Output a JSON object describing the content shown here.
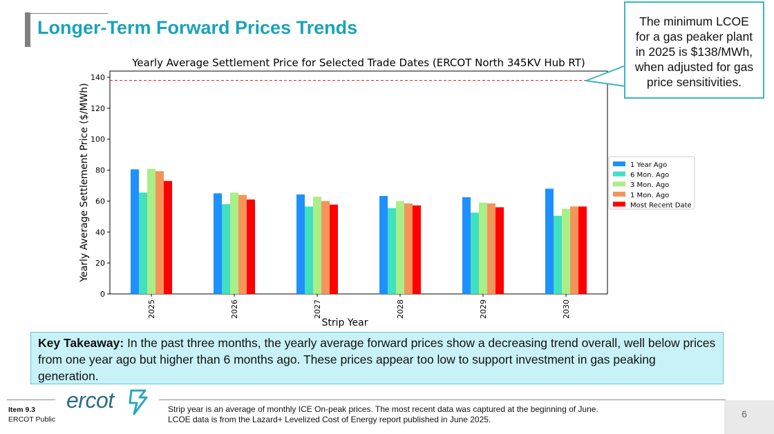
{
  "slide": {
    "title": "Longer-Term Forward Prices Trends",
    "page_number": "6"
  },
  "callout": {
    "lines": [
      "The minimum LCOE",
      "for a gas peaker plant",
      "in 2025 is $138/MWh,",
      "when adjusted for gas",
      "price sensitivities."
    ]
  },
  "takeaway": {
    "label": "Key Takeaway:",
    "text": " In the past three months, the yearly average forward prices show a decreasing trend overall, well below prices from one year ago but higher than 6 months ago. These prices appear too low to support investment in gas peaking generation."
  },
  "footer": {
    "item": "Item 9.3",
    "classification": "ERCOT Public",
    "logo_text": "ercot",
    "note_lines": [
      "Strip year is an average of monthly ICE On-peak prices.  The most recent data was captured at the beginning of June.",
      "LCOE data is from the Lazard+ Levelized Cost of Energy report published in June 2025."
    ]
  },
  "chart_data": {
    "type": "bar",
    "title": "Yearly Average Settlement Price for Selected Trade Dates (ERCOT North 345KV Hub RT)",
    "xlabel": "Strip Year",
    "ylabel": "Yearly Average Settlement Price ($/MWh)",
    "ylim": [
      0,
      144
    ],
    "yticks": [
      0,
      20,
      40,
      60,
      80,
      100,
      120,
      140
    ],
    "categories": [
      "2025",
      "2026",
      "2027",
      "2028",
      "2029",
      "2030"
    ],
    "series": [
      {
        "name": "1 Year Ago",
        "color": "#1e90ff",
        "values": [
          80.5,
          65.0,
          64.3,
          63.3,
          62.5,
          68.0
        ]
      },
      {
        "name": "6 Mon. Ago",
        "color": "#40e0c0",
        "values": [
          65.5,
          58.0,
          56.5,
          55.5,
          52.5,
          50.5
        ]
      },
      {
        "name": "3 Mon. Ago",
        "color": "#aaee88",
        "values": [
          80.8,
          65.5,
          62.8,
          60.0,
          59.0,
          55.0
        ]
      },
      {
        "name": "1 Mon. Ago",
        "color": "#f4945a",
        "values": [
          79.3,
          64.0,
          60.0,
          58.5,
          58.5,
          56.5
        ]
      },
      {
        "name": "Most Recent Date",
        "color": "#ff0000",
        "values": [
          73.0,
          61.0,
          57.7,
          57.2,
          56.0,
          56.5
        ]
      }
    ],
    "reference_line": {
      "value": 138,
      "color": "#dd2222",
      "style": "dashed"
    },
    "legend_position": "right",
    "grid": false
  }
}
